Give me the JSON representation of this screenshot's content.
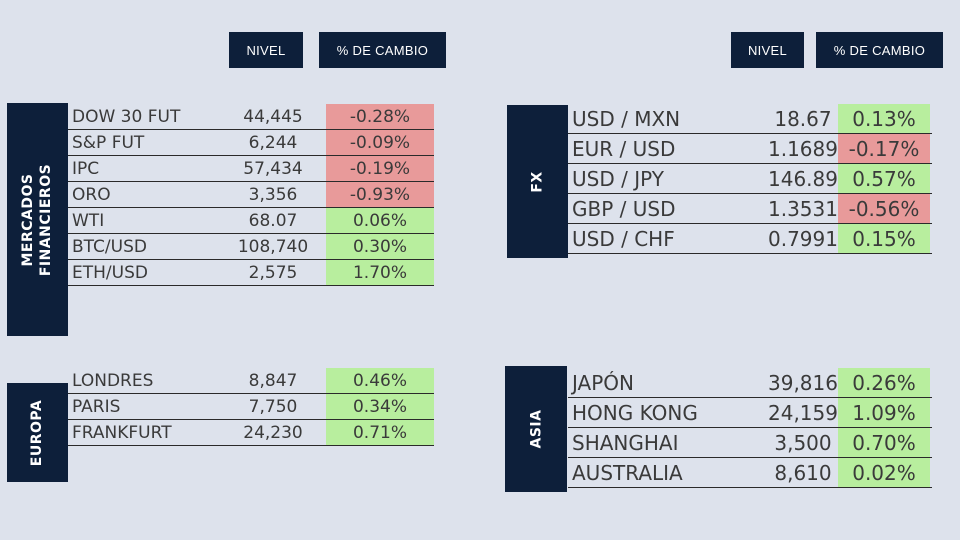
{
  "headers": {
    "level": "NIVEL",
    "change": "% DE CAMBIO"
  },
  "sections": {
    "mercados": {
      "label_line1": "MERCADOS",
      "label_line2": "FINANCIEROS",
      "rows": [
        {
          "name": "DOW 30 FUT",
          "level": "44,445",
          "change": "-0.28%"
        },
        {
          "name": "S&P FUT",
          "level": "6,244",
          "change": "-0.09%"
        },
        {
          "name": "IPC",
          "level": "57,434",
          "change": "-0.19%"
        },
        {
          "name": "ORO",
          "level": "3,356",
          "change": "-0.93%"
        },
        {
          "name": "WTI",
          "level": "68.07",
          "change": "0.06%"
        },
        {
          "name": "BTC/USD",
          "level": "108,740",
          "change": "0.30%"
        },
        {
          "name": "ETH/USD",
          "level": "2,575",
          "change": "1.70%"
        }
      ]
    },
    "europa": {
      "label": "EUROPA",
      "rows": [
        {
          "name": "LONDRES",
          "level": "8,847",
          "change": "0.46%"
        },
        {
          "name": "PARIS",
          "level": "7,750",
          "change": "0.34%"
        },
        {
          "name": "FRANKFURT",
          "level": "24,230",
          "change": "0.71%"
        }
      ]
    },
    "fx": {
      "label": "FX",
      "rows": [
        {
          "name": "USD / MXN",
          "level": "18.67",
          "change": "0.13%"
        },
        {
          "name": "EUR / USD",
          "level": "1.1689",
          "change": "-0.17%"
        },
        {
          "name": "USD / JPY",
          "level": "146.89",
          "change": "0.57%"
        },
        {
          "name": "GBP / USD",
          "level": "1.3531",
          "change": "-0.56%"
        },
        {
          "name": "USD / CHF",
          "level": "0.7991",
          "change": "0.15%"
        }
      ]
    },
    "asia": {
      "label": "ASIA",
      "rows": [
        {
          "name": "JAPÓN",
          "level": "39,816",
          "change": "0.26%"
        },
        {
          "name": "HONG KONG",
          "level": "24,159",
          "change": "1.09%"
        },
        {
          "name": "SHANGHAI",
          "level": "3,500",
          "change": "0.70%"
        },
        {
          "name": "AUSTRALIA",
          "level": "8,610",
          "change": "0.02%"
        }
      ]
    }
  },
  "colors": {
    "panel": "#0d1f3a",
    "negative": "#e89a9a",
    "positive": "#b8ee9e",
    "background": "#dde2ec"
  }
}
